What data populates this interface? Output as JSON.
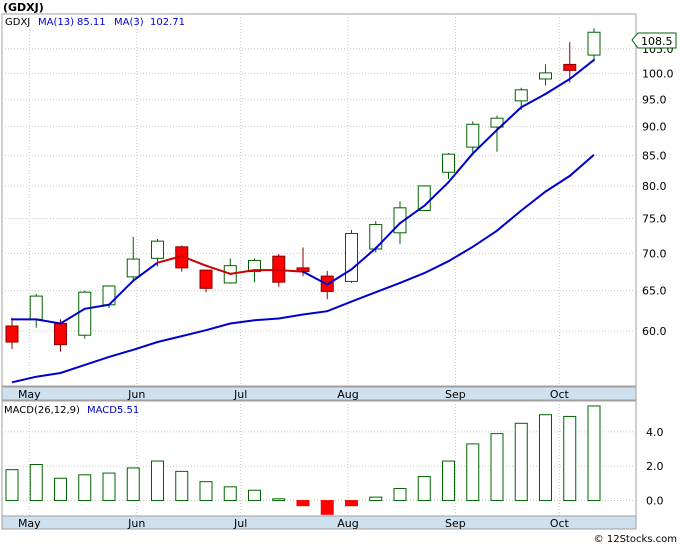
{
  "chart_data": [
    {
      "type": "candlestick",
      "title": "(GDXJ)",
      "ticker": "GDXJ",
      "legend": [
        {
          "label": "MA(13)",
          "value": "85.11"
        },
        {
          "label": "MA(3)",
          "value": "102.71"
        }
      ],
      "last_price": "108.5",
      "x_ticks": [
        "May",
        "Jun",
        "Jul",
        "Aug",
        "Sep",
        "Oct"
      ],
      "y_ticks": [
        "60.0",
        "65.0",
        "70.0",
        "75.0",
        "80.0",
        "85.0",
        "90.0",
        "95.0",
        "100.0",
        "105.0"
      ],
      "y_scale": "log",
      "ylim": [
        53.8,
        112.5
      ],
      "candles": [
        {
          "week": "2024-04-26",
          "open": 60.6,
          "high": 61.6,
          "low": 57.9,
          "close": 58.7
        },
        {
          "week": "2024-05-03",
          "open": 61.4,
          "high": 64.6,
          "low": 60.4,
          "close": 64.3
        },
        {
          "week": "2024-05-10",
          "open": 60.9,
          "high": 61.4,
          "low": 57.6,
          "close": 58.4
        },
        {
          "week": "2024-05-17",
          "open": 59.5,
          "high": 65.0,
          "low": 59.1,
          "close": 64.8
        },
        {
          "week": "2024-05-24",
          "open": 63.2,
          "high": 65.7,
          "low": 62.8,
          "close": 65.6
        },
        {
          "week": "2024-05-31",
          "open": 66.8,
          "high": 72.3,
          "low": 66.2,
          "close": 69.2
        },
        {
          "week": "2024-06-07",
          "open": 69.3,
          "high": 72.0,
          "low": 68.2,
          "close": 71.7
        },
        {
          "week": "2024-06-14",
          "open": 70.9,
          "high": 71.1,
          "low": 67.5,
          "close": 68.0
        },
        {
          "week": "2024-06-21",
          "open": 67.7,
          "high": 67.7,
          "low": 64.8,
          "close": 65.3
        },
        {
          "week": "2024-06-28",
          "open": 66.0,
          "high": 69.3,
          "low": 65.9,
          "close": 68.3
        },
        {
          "week": "2024-07-05",
          "open": 67.5,
          "high": 69.3,
          "low": 66.1,
          "close": 69.0
        },
        {
          "week": "2024-07-12",
          "open": 69.6,
          "high": 69.9,
          "low": 65.5,
          "close": 66.1
        },
        {
          "week": "2024-07-19",
          "open": 68.0,
          "high": 70.8,
          "low": 66.9,
          "close": 67.5
        },
        {
          "week": "2024-07-26",
          "open": 66.9,
          "high": 67.6,
          "low": 63.9,
          "close": 64.9
        },
        {
          "week": "2024-08-02",
          "open": 66.2,
          "high": 73.3,
          "low": 66.0,
          "close": 72.8
        },
        {
          "week": "2024-08-09",
          "open": 70.6,
          "high": 74.6,
          "low": 70.1,
          "close": 74.1
        },
        {
          "week": "2024-08-16",
          "open": 72.9,
          "high": 77.6,
          "low": 71.3,
          "close": 76.6
        },
        {
          "week": "2024-08-23",
          "open": 76.2,
          "high": 80.1,
          "low": 76.1,
          "close": 80.0
        },
        {
          "week": "2024-08-30",
          "open": 82.2,
          "high": 85.4,
          "low": 81.1,
          "close": 85.2
        },
        {
          "week": "2024-09-06",
          "open": 86.4,
          "high": 90.9,
          "low": 85.5,
          "close": 90.4
        },
        {
          "week": "2024-09-13",
          "open": 89.9,
          "high": 92.0,
          "low": 85.6,
          "close": 91.5
        },
        {
          "week": "2024-09-20",
          "open": 94.7,
          "high": 97.2,
          "low": 93.0,
          "close": 96.8
        },
        {
          "week": "2024-09-27",
          "open": 98.9,
          "high": 101.8,
          "low": 97.6,
          "close": 100.1
        },
        {
          "week": "2024-10-04",
          "open": 101.8,
          "high": 106.4,
          "low": 98.2,
          "close": 100.6
        },
        {
          "week": "2024-10-11",
          "open": 103.7,
          "high": 109.4,
          "low": 102.7,
          "close": 108.5
        }
      ],
      "ma13": [
        54.2,
        54.8,
        55.2,
        56.1,
        57.0,
        57.8,
        58.7,
        59.4,
        60.1,
        60.9,
        61.3,
        61.5,
        62.0,
        62.4,
        63.6,
        64.8,
        66.0,
        67.3,
        68.9,
        70.9,
        73.2,
        76.2,
        79.1,
        81.6,
        85.11
      ],
      "ma3": [
        61.4,
        61.4,
        60.9,
        62.7,
        63.2,
        66.3,
        68.7,
        69.6,
        68.3,
        67.2,
        67.7,
        67.7,
        67.5,
        65.8,
        67.8,
        70.7,
        74.3,
        76.9,
        80.6,
        85.3,
        89.4,
        93.5,
        96.0,
        98.9,
        102.71
      ],
      "ma3_red": [
        6,
        7,
        8,
        9,
        10,
        11,
        12
      ]
    },
    {
      "type": "bar",
      "title": "MACD(26,12,9)",
      "legend": [
        {
          "label": "MACD:",
          "value": "5.51"
        }
      ],
      "x_ticks": [
        "May",
        "Jun",
        "Jul",
        "Aug",
        "Sep",
        "Oct"
      ],
      "y_ticks": [
        "0.0",
        "2.0",
        "4.0"
      ],
      "ylim": [
        -0.9,
        5.8
      ],
      "values": [
        1.8,
        2.1,
        1.3,
        1.5,
        1.6,
        1.9,
        2.3,
        1.7,
        1.1,
        0.8,
        0.6,
        0.1,
        -0.3,
        -0.8,
        -0.3,
        0.2,
        0.7,
        1.4,
        2.3,
        3.3,
        3.9,
        4.5,
        5.0,
        4.9,
        5.51
      ]
    }
  ],
  "header": {
    "title": "(GDXJ)"
  },
  "watermark": "© 12Stocks.com",
  "colors": {
    "up_candle": "#006400",
    "down_candle": "#ff0000",
    "ma13": "#0000cc",
    "ma3": "#0000cc",
    "ma3_red": "#cc0000",
    "axis_band": "#cfe0ee",
    "macd_bar": "#006400",
    "price_tag": "#006400"
  }
}
